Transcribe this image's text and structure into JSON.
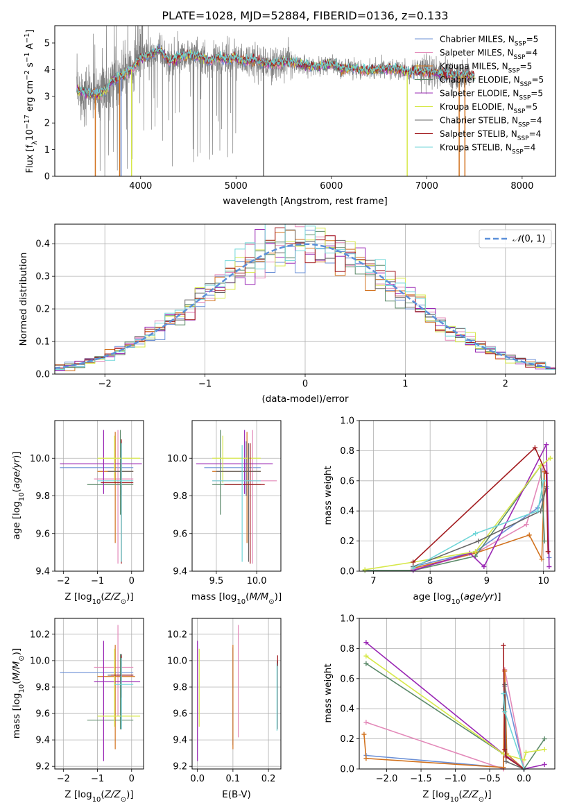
{
  "colors": {
    "Chabrier MILES": "#6a8fd6",
    "Salpeter MILES": "#e389b9",
    "Kroupa MILES": "#d2721e",
    "Chabrier ELODIE": "#5c8a6a",
    "Salpeter ELODIE": "#9a28b5",
    "Kroupa ELODIE": "#d7e84a",
    "Chabrier STELIB": "#666666",
    "Salpeter STELIB": "#a31c20",
    "Kroupa STELIB": "#6fd6d8",
    "gaussian": "#5b8fd9",
    "grid": "#b0b0b0"
  },
  "chart_data": [
    {
      "id": "spectrum",
      "type": "line",
      "title": "PLATE=1028, MJD=52884, FIBERID=0136, z=0.133",
      "xlabel": "wavelength [Angstrom, rest frame]",
      "ylabel": "Flux [f$_\\lambda$10$^{-17}$ erg cm$^{-2}$ s$^{-1}$ A$^{-1}$]",
      "xlim": [
        3100,
        8350
      ],
      "ylim": [
        0,
        5.65
      ],
      "xticks": [
        "4000",
        "5000",
        "6000",
        "7000",
        "8000"
      ],
      "yticks": [
        "0",
        "1",
        "2",
        "3",
        "4",
        "5"
      ],
      "grid": false,
      "legend_position": "upper-right",
      "legend": [
        "Chabrier MILES, N$_{SSP}$=5",
        "Salpeter MILES, N$_{SSP}$=4",
        "Kroupa MILES, N$_{SSP}$=5",
        "Chabrier ELODIE, N$_{SSP}$=5",
        "Salpeter ELODIE, N$_{SSP}$=5",
        "Kroupa ELODIE, N$_{SSP}$=5",
        "Chabrier STELIB, N$_{SSP}$=4",
        "Salpeter STELIB, N$_{SSP}$=4",
        "Kroupa STELIB, N$_{SSP}$=4"
      ],
      "model_continuum": {
        "x": [
          3330,
          3450,
          3560,
          3650,
          3700,
          3800,
          3900,
          4000,
          4100,
          4200,
          4300,
          4400,
          4500,
          4600,
          4700,
          4800,
          4900,
          5000,
          5100,
          5200,
          5300,
          5400,
          5500,
          5600,
          5700,
          5800,
          5900,
          6000,
          6100,
          6200,
          6300,
          6400,
          6500,
          6600,
          6700,
          6800,
          6900,
          7000,
          7100,
          7200,
          7300,
          7400,
          7500,
          7600,
          7700,
          7800,
          7900,
          8000,
          8100
        ],
        "y": [
          3.2,
          3.15,
          3.05,
          3.3,
          3.6,
          3.75,
          4.0,
          4.45,
          4.55,
          4.75,
          4.3,
          4.5,
          4.55,
          4.5,
          4.35,
          4.45,
          4.4,
          4.45,
          4.3,
          4.35,
          4.25,
          4.2,
          4.3,
          4.25,
          4.2,
          4.1,
          4.15,
          4.2,
          4.05,
          4.05,
          4.0,
          4.0,
          4.0,
          4.05,
          4.0,
          3.9,
          3.95,
          3.95,
          3.85,
          3.85,
          3.75,
          3.8,
          3.75,
          3.7,
          3.65,
          3.6,
          3.65,
          3.6,
          3.55
        ]
      },
      "dropouts": [
        {
          "series": "Kroupa MILES",
          "x": 3525
        },
        {
          "series": "Kroupa MILES",
          "x": 3780
        },
        {
          "series": "Chabrier MILES",
          "x": 3795
        },
        {
          "series": "Kroupa ELODIE",
          "x": 3905
        },
        {
          "series": "Chabrier STELIB",
          "x": 5290
        },
        {
          "series": "Kroupa ELODIE",
          "x": 6795
        },
        {
          "series": "Kroupa MILES",
          "x": 7340
        },
        {
          "series": "Kroupa MILES",
          "x": 7400
        }
      ]
    },
    {
      "id": "residuals",
      "type": "line",
      "xlabel": "(data-model)/error",
      "ylabel": "Normed distribution",
      "xlim": [
        -2.5,
        2.5
      ],
      "ylim": [
        0,
        0.46
      ],
      "xticks": [
        "−2",
        "−1",
        "0",
        "1",
        "2"
      ],
      "yticks": [
        "0.0",
        "0.1",
        "0.2",
        "0.3",
        "0.4"
      ],
      "grid": true,
      "legend_position": "upper-right",
      "legend": [
        "$\\mathcal{N}(0,1)$"
      ],
      "gaussian": {
        "mu": 0,
        "sigma": 1,
        "style": "dashed"
      }
    },
    {
      "id": "age-vs-Z",
      "type": "scatter",
      "xlabel": "Z [log$_{10}$($Z/Z_\\odot$)]",
      "ylabel": "age  [log$_{10}$($age/yr$)]",
      "xlim": [
        -2.25,
        0.35
      ],
      "ylim": [
        9.4,
        10.2
      ],
      "xticks": [
        "−2",
        "−1",
        "0"
      ],
      "yticks": [
        "9.4",
        "9.6",
        "9.8",
        "10.0"
      ],
      "grid": true,
      "points": [
        {
          "series": "Chabrier MILES",
          "x": -0.3,
          "xlo": -2.1,
          "xhi": 0.05,
          "y": 9.95,
          "ylo": 9.8,
          "yhi": 10.09
        },
        {
          "series": "Salpeter MILES",
          "x": -0.4,
          "xlo": -1.1,
          "xhi": 0.05,
          "y": 9.89,
          "ylo": 9.44,
          "yhi": 10.15
        },
        {
          "series": "Kroupa MILES",
          "x": -0.48,
          "xlo": -1.0,
          "xhi": 0.05,
          "y": 9.93,
          "ylo": 9.55,
          "yhi": 10.14
        },
        {
          "series": "Chabrier ELODIE",
          "x": -0.33,
          "xlo": -1.3,
          "xhi": 0.05,
          "y": 9.86,
          "ylo": 9.7,
          "yhi": 10.15
        },
        {
          "series": "Salpeter ELODIE",
          "x": -0.82,
          "xlo": -2.1,
          "xhi": 0.3,
          "y": 9.97,
          "ylo": 9.81,
          "yhi": 10.15
        },
        {
          "series": "Kroupa ELODIE",
          "x": -0.5,
          "xlo": -1.0,
          "xhi": 0.25,
          "y": 10.0,
          "ylo": 9.87,
          "yhi": 10.12
        },
        {
          "series": "Chabrier STELIB",
          "x": -0.3,
          "xlo": -0.7,
          "xhi": 0.05,
          "y": 9.93,
          "ylo": 9.45,
          "yhi": 10.08
        },
        {
          "series": "Salpeter STELIB",
          "x": -0.3,
          "xlo": -0.9,
          "xhi": 0.05,
          "y": 9.87,
          "ylo": 9.44,
          "yhi": 10.1
        },
        {
          "series": "Kroupa STELIB",
          "x": -0.3,
          "xlo": -1.0,
          "xhi": 0.05,
          "y": 9.88,
          "ylo": 9.45,
          "yhi": 10.08
        }
      ]
    },
    {
      "id": "age-vs-mass",
      "type": "scatter",
      "xlabel": "mass [log$_{10}$($M/M_\\odot$)]",
      "ylabel": "",
      "xlim": [
        9.2,
        10.3
      ],
      "ylim": [
        9.4,
        10.2
      ],
      "xticks": [
        "9.5",
        "10.0"
      ],
      "yticks": [
        "9.4",
        "9.6",
        "9.8",
        "10.0"
      ],
      "grid": true,
      "points": [
        {
          "series": "Chabrier MILES",
          "x": 9.87,
          "xlo": 9.35,
          "xhi": 10.05,
          "y": 9.95,
          "ylo": 9.8,
          "yhi": 10.09
        },
        {
          "series": "Salpeter MILES",
          "x": 9.95,
          "xlo": 9.45,
          "xhi": 10.25,
          "y": 9.88,
          "ylo": 9.44,
          "yhi": 10.15
        },
        {
          "series": "Kroupa MILES",
          "x": 9.88,
          "xlo": 9.45,
          "xhi": 10.05,
          "y": 9.93,
          "ylo": 9.55,
          "yhi": 10.14
        },
        {
          "series": "Chabrier ELODIE",
          "x": 9.55,
          "xlo": 9.45,
          "xhi": 10.05,
          "y": 9.86,
          "ylo": 9.7,
          "yhi": 10.15
        },
        {
          "series": "Salpeter ELODIE",
          "x": 9.85,
          "xlo": 9.25,
          "xhi": 10.2,
          "y": 9.97,
          "ylo": 9.81,
          "yhi": 10.15
        },
        {
          "series": "Kroupa ELODIE",
          "x": 9.58,
          "xlo": 9.45,
          "xhi": 10.05,
          "y": 10.0,
          "ylo": 9.87,
          "yhi": 10.12
        },
        {
          "series": "Chabrier STELIB",
          "x": 9.9,
          "xlo": 9.5,
          "xhi": 10.05,
          "y": 9.93,
          "ylo": 9.45,
          "yhi": 10.08
        },
        {
          "series": "Salpeter STELIB",
          "x": 9.92,
          "xlo": 9.6,
          "xhi": 10.1,
          "y": 9.86,
          "ylo": 9.44,
          "yhi": 10.08
        },
        {
          "series": "Kroupa STELIB",
          "x": 9.82,
          "xlo": 9.45,
          "xhi": 10.05,
          "y": 9.88,
          "ylo": 9.45,
          "yhi": 10.07
        }
      ]
    },
    {
      "id": "weight-vs-age",
      "type": "line",
      "xlabel": "age  [log$_{10}$($age/yr$)]",
      "ylabel": "mass weight",
      "xlim": [
        6.75,
        10.2
      ],
      "ylim": [
        0,
        1.0
      ],
      "xticks": [
        "7",
        "8",
        "9",
        "10"
      ],
      "yticks": [
        "0.0",
        "0.2",
        "0.4",
        "0.6",
        "0.8",
        "1.0"
      ],
      "grid": true,
      "series": [
        {
          "name": "Chabrier MILES",
          "x": [
            7.7,
            8.8,
            9.9,
            10.05,
            10.1
          ],
          "y": [
            0.03,
            0.13,
            0.42,
            0.55,
            0.09
          ]
        },
        {
          "name": "Salpeter MILES",
          "x": [
            7.7,
            8.8,
            9.7,
            10.0
          ],
          "y": [
            0.01,
            0.12,
            0.31,
            0.7
          ]
        },
        {
          "name": "Kroupa MILES",
          "x": [
            7.7,
            8.8,
            9.75,
            9.97,
            10.02
          ],
          "y": [
            0.02,
            0.12,
            0.24,
            0.08,
            0.66
          ]
        },
        {
          "name": "Chabrier ELODIE",
          "x": [
            6.85,
            7.7,
            8.8,
            9.95,
            10.02
          ],
          "y": [
            0.005,
            0.005,
            0.1,
            0.7,
            0.2
          ]
        },
        {
          "name": "Salpeter ELODIE",
          "x": [
            7.7,
            8.7,
            8.95,
            10.05,
            10.1
          ],
          "y": [
            0.005,
            0.12,
            0.03,
            0.84,
            0.03
          ]
        },
        {
          "name": "Kroupa ELODIE",
          "x": [
            6.85,
            7.7,
            8.8,
            9.95,
            10.12
          ],
          "y": [
            0.01,
            0.06,
            0.13,
            0.7,
            0.75
          ]
        },
        {
          "name": "Chabrier STELIB",
          "x": [
            7.7,
            8.85,
            9.95,
            10.05
          ],
          "y": [
            0.03,
            0.2,
            0.4,
            0.56
          ]
        },
        {
          "name": "Salpeter STELIB",
          "x": [
            7.7,
            9.85,
            10.05,
            10.08
          ],
          "y": [
            0.06,
            0.82,
            0.65,
            0.13
          ]
        },
        {
          "name": "Kroupa STELIB",
          "x": [
            7.7,
            8.8,
            9.9,
            10.0
          ],
          "y": [
            0.02,
            0.25,
            0.4,
            0.6
          ]
        }
      ]
    },
    {
      "id": "mass-vs-Z",
      "type": "scatter",
      "xlabel": "Z [log$_{10}$($Z/Z_\\odot$)]",
      "ylabel": "mass [log$_{10}$($M/M_\\odot$)]",
      "xlim": [
        -2.25,
        0.35
      ],
      "ylim": [
        9.18,
        10.32
      ],
      "xticks": [
        "−2",
        "−1",
        "0"
      ],
      "yticks": [
        "9.2",
        "9.4",
        "9.6",
        "9.8",
        "10.0",
        "10.2"
      ],
      "grid": true,
      "points": [
        {
          "series": "Chabrier MILES",
          "x": -0.3,
          "xlo": -2.1,
          "xhi": 0.05,
          "y": 9.91,
          "ylo": 9.48,
          "yhi": 10.05
        },
        {
          "series": "Salpeter MILES",
          "x": -0.4,
          "xlo": -1.1,
          "xhi": 0.05,
          "y": 9.95,
          "ylo": 9.58,
          "yhi": 10.27
        },
        {
          "series": "Kroupa MILES",
          "x": -0.48,
          "xlo": -1.0,
          "xhi": 0.1,
          "y": 9.88,
          "ylo": 9.33,
          "yhi": 10.12
        },
        {
          "series": "Chabrier ELODIE",
          "x": -0.33,
          "xlo": -1.3,
          "xhi": 0.05,
          "y": 9.55,
          "ylo": 9.48,
          "yhi": 10.05
        },
        {
          "series": "Salpeter ELODIE",
          "x": -0.82,
          "xlo": -1.1,
          "xhi": 0.25,
          "y": 9.84,
          "ylo": 9.24,
          "yhi": 10.15
        },
        {
          "series": "Kroupa ELODIE",
          "x": -0.5,
          "xlo": -1.0,
          "xhi": 0.25,
          "y": 9.58,
          "ylo": 9.5,
          "yhi": 10.09
        },
        {
          "series": "Chabrier STELIB",
          "x": -0.3,
          "xlo": -0.7,
          "xhi": 0.05,
          "y": 9.89,
          "ylo": 9.48,
          "yhi": 10.05
        },
        {
          "series": "Salpeter STELIB",
          "x": -0.3,
          "xlo": -0.6,
          "xhi": 0.05,
          "y": 9.89,
          "ylo": 9.72,
          "yhi": 10.04
        },
        {
          "series": "Kroupa STELIB",
          "x": -0.3,
          "xlo": -0.5,
          "xhi": 0.05,
          "y": 9.82,
          "ylo": 9.48,
          "yhi": 10.02
        }
      ]
    },
    {
      "id": "mass-vs-EBV",
      "type": "scatter",
      "xlabel": "E(B-V)",
      "ylabel": "",
      "xlim": [
        -0.015,
        0.235
      ],
      "ylim": [
        9.18,
        10.32
      ],
      "xticks": [
        "0.0",
        "0.1",
        "0.2"
      ],
      "yticks": [
        "9.2",
        "9.4",
        "9.6",
        "9.8",
        "10.0",
        "10.2"
      ],
      "grid": true,
      "points": [
        {
          "series": "Chabrier MILES",
          "x": 0.1,
          "y": 9.91,
          "ylo": 9.36,
          "yhi": 10.1
        },
        {
          "series": "Salpeter MILES",
          "x": 0.115,
          "y": 9.95,
          "ylo": 9.42,
          "yhi": 10.27
        },
        {
          "series": "Kroupa MILES",
          "x": 0.1,
          "y": 9.88,
          "ylo": 9.33,
          "yhi": 10.12
        },
        {
          "series": "Chabrier ELODIE",
          "x": 0.225,
          "y": 9.55,
          "ylo": 9.49,
          "yhi": 9.98
        },
        {
          "series": "Salpeter ELODIE",
          "x": 0.0,
          "y": 9.84,
          "ylo": 9.24,
          "yhi": 10.15
        },
        {
          "series": "Kroupa ELODIE",
          "x": 0.005,
          "y": 9.58,
          "ylo": 9.5,
          "yhi": 10.09
        },
        {
          "series": "Chabrier STELIB",
          "x": 0.225,
          "y": 9.89,
          "ylo": 9.48,
          "yhi": 10.0
        },
        {
          "series": "Salpeter STELIB",
          "x": 0.226,
          "y": 9.89,
          "ylo": 9.96,
          "yhi": 10.04
        },
        {
          "series": "Kroupa STELIB",
          "x": 0.224,
          "y": 9.82,
          "ylo": 9.47,
          "yhi": 9.98
        }
      ]
    },
    {
      "id": "weight-vs-Z",
      "type": "line",
      "xlabel": "Z [log$_{10}$($Z/Z_\\odot$)]",
      "ylabel": "mass weight",
      "xlim": [
        -2.4,
        0.45
      ],
      "ylim": [
        0,
        1.0
      ],
      "xticks": [
        "−2.0",
        "−1.5",
        "−1.0",
        "−0.5",
        "0.0"
      ],
      "yticks": [
        "0.0",
        "0.2",
        "0.4",
        "0.6",
        "0.8",
        "1.0"
      ],
      "grid": true,
      "series": [
        {
          "name": "Chabrier MILES",
          "x": [
            -2.3,
            -0.3,
            -0.28,
            0.0
          ],
          "y": [
            0.09,
            0.01,
            0.55,
            0.0
          ]
        },
        {
          "name": "Salpeter MILES",
          "x": [
            -2.3,
            -0.3,
            -0.28,
            0.0
          ],
          "y": [
            0.31,
            0.0,
            0.66,
            0.0
          ]
        },
        {
          "name": "Kroupa MILES",
          "x": [
            -2.33,
            -2.3,
            -0.3,
            -0.28,
            -0.25,
            0.0
          ],
          "y": [
            0.23,
            0.07,
            0.01,
            0.65,
            0.1,
            0.0
          ]
        },
        {
          "name": "Chabrier ELODIE",
          "x": [
            -2.3,
            -0.3,
            0.0,
            0.3
          ],
          "y": [
            0.7,
            0.1,
            0.0,
            0.2
          ]
        },
        {
          "name": "Salpeter ELODIE",
          "x": [
            -2.3,
            -0.3,
            0.0,
            0.3
          ],
          "y": [
            0.84,
            0.1,
            0.0,
            0.03
          ]
        },
        {
          "name": "Kroupa ELODIE",
          "x": [
            -2.3,
            -0.3,
            0.0,
            0.03,
            0.3
          ],
          "y": [
            0.75,
            0.1,
            0.06,
            0.11,
            0.13
          ]
        },
        {
          "name": "Chabrier STELIB",
          "x": [
            -0.3,
            -0.28,
            -0.26,
            0.0
          ],
          "y": [
            0.4,
            0.56,
            0.05,
            0.0
          ]
        },
        {
          "name": "Salpeter STELIB",
          "x": [
            -0.3,
            -0.28,
            -0.26,
            0.0
          ],
          "y": [
            0.82,
            0.13,
            0.08,
            0.0
          ]
        },
        {
          "name": "Kroupa STELIB",
          "x": [
            -0.3,
            -0.28,
            0.0
          ],
          "y": [
            0.5,
            0.38,
            0.0
          ]
        }
      ]
    }
  ]
}
